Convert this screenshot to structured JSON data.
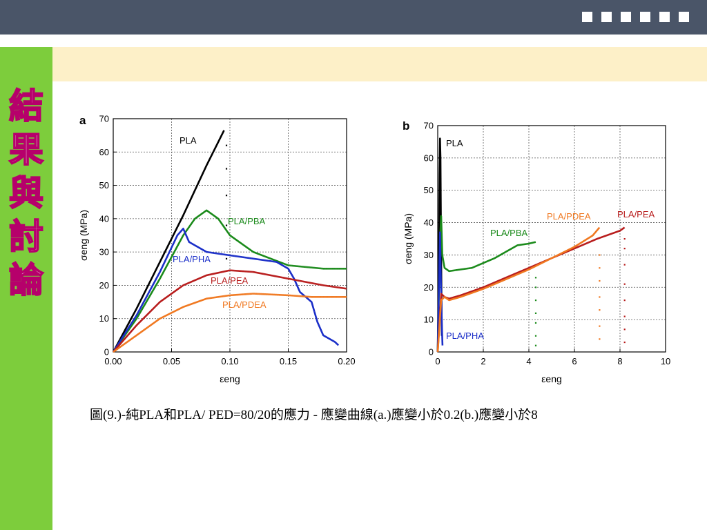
{
  "slide": {
    "title": "結\n果\n與\n討\n論",
    "caption": "圖(9.)-純PLA和PLA/ PED=80/20的應力 - 應變曲線(a.)應變小於0.2(b.)應變小於8",
    "colors": {
      "header": "#4a5568",
      "sidebar": "#7dcd3c",
      "banner": "#fdf0c8",
      "title_stroke": "#b6006b"
    }
  },
  "chart_data": [
    {
      "type": "line",
      "panel_label": "a",
      "xlim": [
        0,
        0.2
      ],
      "ylim": [
        0,
        70
      ],
      "xticks": [
        "0.00",
        "0.05",
        "0.10",
        "0.15",
        "0.20"
      ],
      "yticks": [
        "0",
        "10",
        "20",
        "30",
        "40",
        "50",
        "60",
        "70"
      ],
      "xlabel": "εeng",
      "ylabel": "σeng (MPa)",
      "grid": true,
      "series": [
        {
          "name": "PLA",
          "color": "#000000",
          "points": [
            [
              0,
              0
            ],
            [
              0.02,
              13
            ],
            [
              0.04,
              27
            ],
            [
              0.06,
              41
            ],
            [
              0.08,
              56
            ],
            [
              0.09,
              63
            ],
            [
              0.095,
              66.5
            ]
          ],
          "fracture": [
            [
              0.097,
              62
            ],
            [
              0.097,
              55
            ],
            [
              0.097,
              47
            ],
            [
              0.097,
              38
            ],
            [
              0.097,
              28
            ]
          ]
        },
        {
          "name": "PLA/PBA",
          "color": "#1a8a1a",
          "points": [
            [
              0,
              0
            ],
            [
              0.02,
              10
            ],
            [
              0.04,
              22
            ],
            [
              0.06,
              35
            ],
            [
              0.07,
              40
            ],
            [
              0.08,
              42.5
            ],
            [
              0.09,
              40
            ],
            [
              0.1,
              35
            ],
            [
              0.12,
              30
            ],
            [
              0.15,
              26
            ],
            [
              0.18,
              25
            ],
            [
              0.2,
              25
            ]
          ]
        },
        {
          "name": "PLA/PHA",
          "color": "#1a2ec8",
          "points": [
            [
              0,
              0
            ],
            [
              0.02,
              11
            ],
            [
              0.04,
              24
            ],
            [
              0.055,
              35
            ],
            [
              0.06,
              37
            ],
            [
              0.065,
              33
            ],
            [
              0.08,
              30
            ],
            [
              0.1,
              29
            ],
            [
              0.12,
              28
            ],
            [
              0.14,
              27
            ],
            [
              0.15,
              25
            ],
            [
              0.155,
              22
            ],
            [
              0.16,
              18
            ],
            [
              0.17,
              15
            ],
            [
              0.175,
              9
            ],
            [
              0.18,
              5
            ],
            [
              0.19,
              3
            ],
            [
              0.193,
              2
            ]
          ]
        },
        {
          "name": "PLA/PEA",
          "color": "#b81c1c",
          "points": [
            [
              0,
              0
            ],
            [
              0.02,
              8
            ],
            [
              0.04,
              15
            ],
            [
              0.06,
              20
            ],
            [
              0.08,
              23
            ],
            [
              0.1,
              24.5
            ],
            [
              0.12,
              24
            ],
            [
              0.15,
              22
            ],
            [
              0.18,
              20
            ],
            [
              0.2,
              19
            ]
          ]
        },
        {
          "name": "PLA/PDEA",
          "color": "#f07820",
          "points": [
            [
              0,
              0
            ],
            [
              0.02,
              5
            ],
            [
              0.04,
              10
            ],
            [
              0.06,
              13.5
            ],
            [
              0.08,
              16
            ],
            [
              0.1,
              17
            ],
            [
              0.12,
              17.5
            ],
            [
              0.15,
              17
            ],
            [
              0.17,
              16.5
            ],
            [
              0.2,
              16.5
            ]
          ]
        }
      ]
    },
    {
      "type": "line",
      "panel_label": "b",
      "xlim": [
        0,
        10
      ],
      "ylim": [
        0,
        70
      ],
      "xticks": [
        "0",
        "2",
        "4",
        "6",
        "8",
        "10"
      ],
      "yticks": [
        "0",
        "10",
        "20",
        "30",
        "40",
        "50",
        "60",
        "70"
      ],
      "xlabel": "εeng",
      "ylabel": "σeng (MPa)",
      "grid": true,
      "series": [
        {
          "name": "PLA",
          "color": "#000000",
          "points": [
            [
              0,
              0
            ],
            [
              0.05,
              30
            ],
            [
              0.08,
              55
            ],
            [
              0.1,
              66
            ],
            [
              0.12,
              60
            ],
            [
              0.14,
              40
            ],
            [
              0.16,
              20
            ],
            [
              0.18,
              5
            ]
          ]
        },
        {
          "name": "PLA/PBA",
          "color": "#1a8a1a",
          "points": [
            [
              0,
              0
            ],
            [
              0.1,
              35
            ],
            [
              0.15,
              42
            ],
            [
              0.2,
              30
            ],
            [
              0.3,
              26
            ],
            [
              0.5,
              25
            ],
            [
              1,
              25.5
            ],
            [
              1.5,
              26
            ],
            [
              2,
              27.5
            ],
            [
              2.5,
              29
            ],
            [
              3,
              31
            ],
            [
              3.5,
              33
            ],
            [
              4,
              33.5
            ],
            [
              4.3,
              34
            ]
          ],
          "fracture": [
            [
              4.3,
              23
            ],
            [
              4.3,
              20
            ],
            [
              4.3,
              16
            ],
            [
              4.3,
              12
            ],
            [
              4.3,
              9
            ],
            [
              4.3,
              5
            ],
            [
              4.3,
              2
            ]
          ]
        },
        {
          "name": "PLA/PHA",
          "color": "#1a2ec8",
          "points": [
            [
              0,
              0
            ],
            [
              0.08,
              30
            ],
            [
              0.1,
              37
            ],
            [
              0.13,
              25
            ],
            [
              0.16,
              15
            ],
            [
              0.19,
              6
            ],
            [
              0.21,
              2
            ]
          ]
        },
        {
          "name": "PLA/PEA",
          "color": "#b81c1c",
          "points": [
            [
              0,
              0
            ],
            [
              0.15,
              18
            ],
            [
              0.3,
              17
            ],
            [
              0.5,
              16.5
            ],
            [
              1,
              17.5
            ],
            [
              2,
              20
            ],
            [
              3,
              23
            ],
            [
              4,
              26
            ],
            [
              5,
              29
            ],
            [
              6,
              32
            ],
            [
              7,
              35
            ],
            [
              8,
              37.5
            ],
            [
              8.2,
              38.5
            ]
          ],
          "fracture": [
            [
              8.2,
              35
            ],
            [
              8.2,
              32
            ],
            [
              8.2,
              27
            ],
            [
              8.2,
              21
            ],
            [
              8.2,
              16
            ],
            [
              8.2,
              11
            ],
            [
              8.2,
              7
            ],
            [
              8.2,
              3
            ]
          ]
        },
        {
          "name": "PLA/PDEA",
          "color": "#f07820",
          "points": [
            [
              0,
              0
            ],
            [
              0.15,
              16
            ],
            [
              0.3,
              17
            ],
            [
              0.5,
              16
            ],
            [
              1,
              17
            ],
            [
              2,
              19.5
            ],
            [
              3,
              22.5
            ],
            [
              4,
              25.5
            ],
            [
              5,
              29
            ],
            [
              6,
              32.5
            ],
            [
              6.8,
              36
            ],
            [
              7.1,
              38.5
            ]
          ],
          "fracture": [
            [
              7.1,
              30
            ],
            [
              7.1,
              26
            ],
            [
              7.1,
              22
            ],
            [
              7.1,
              17
            ],
            [
              7.1,
              13
            ],
            [
              7.1,
              8
            ],
            [
              7.1,
              4
            ]
          ]
        }
      ]
    }
  ]
}
